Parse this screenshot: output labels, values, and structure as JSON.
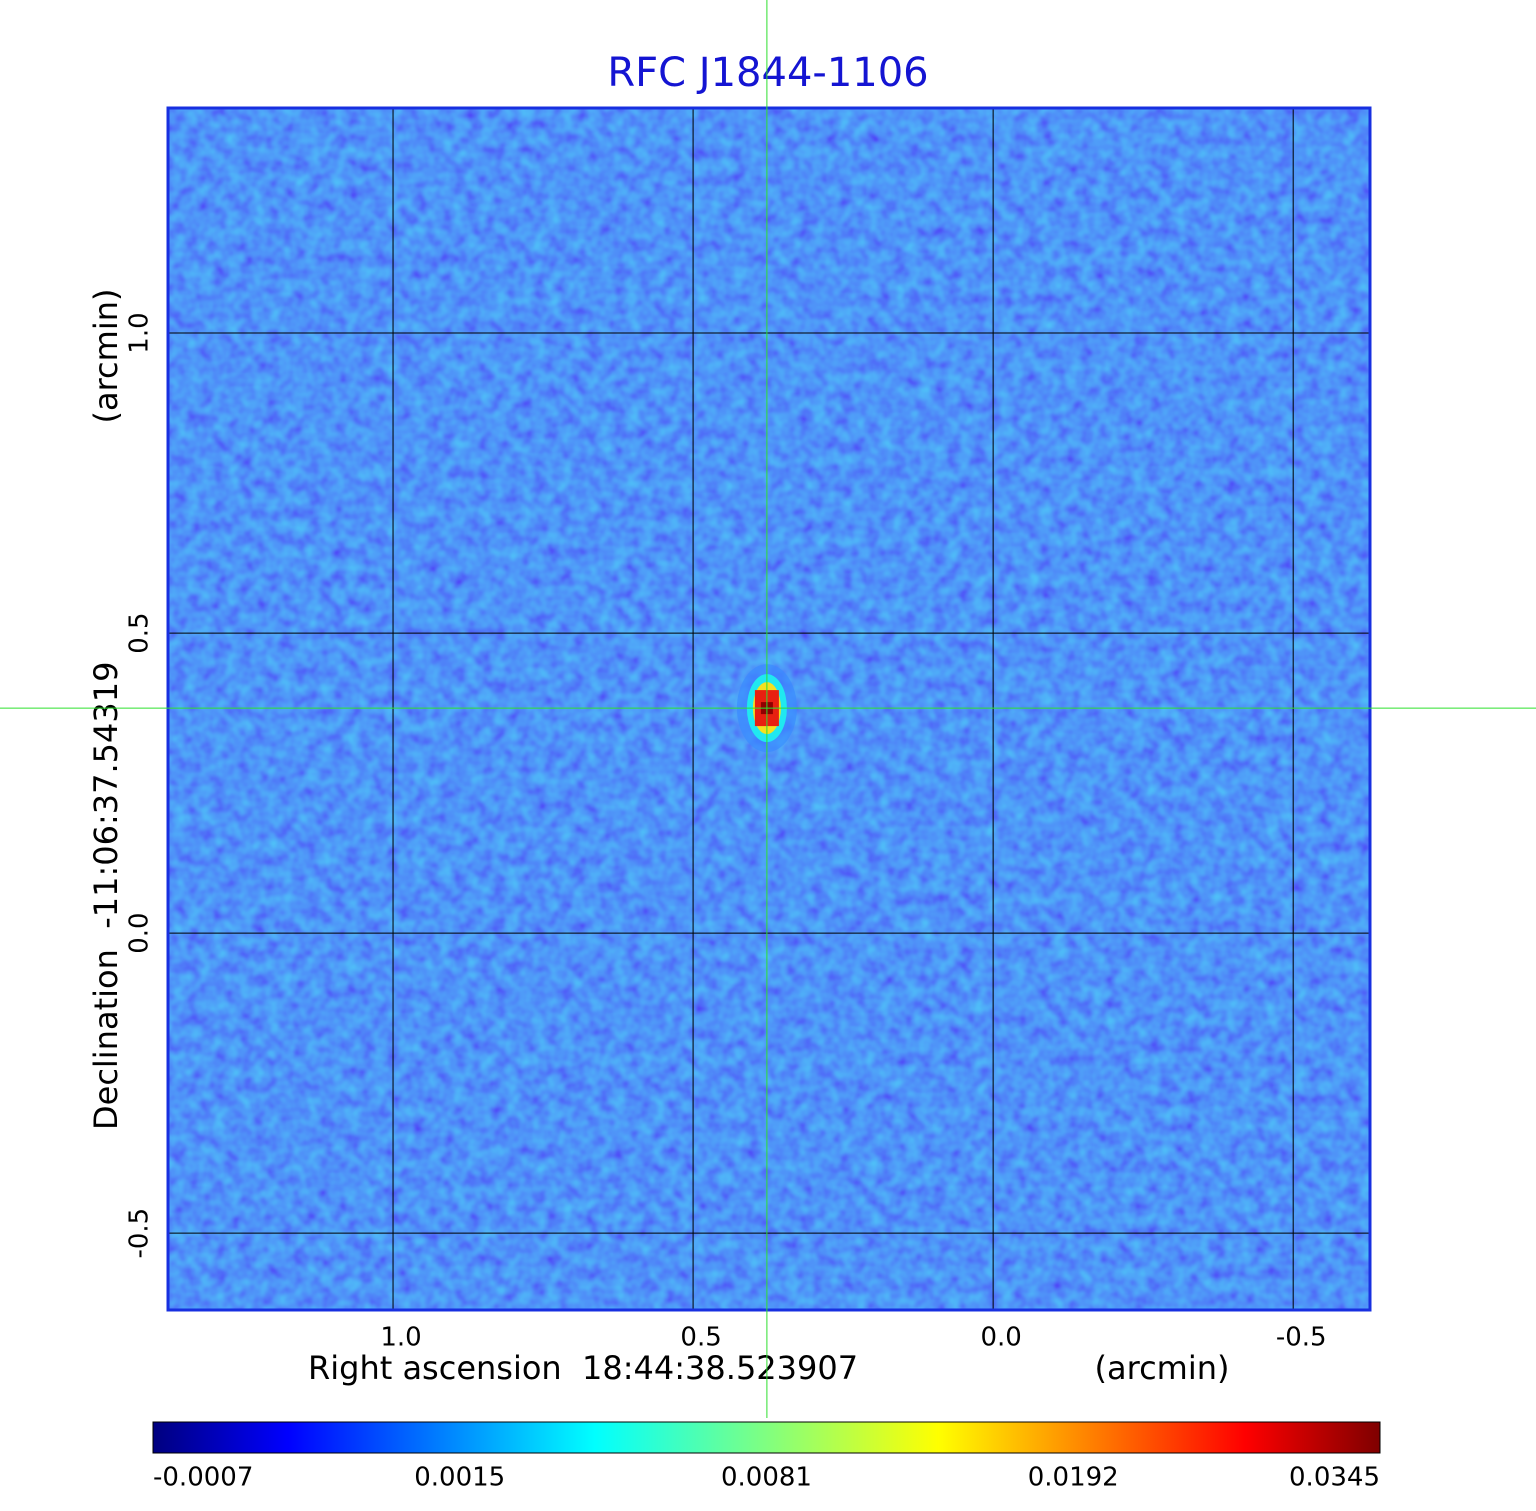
{
  "chart_data": {
    "type": "image",
    "title": "RFC J1844-1106",
    "x_label": "Right ascension  18:44:38.523907",
    "x_unit": "(arcmin)",
    "y_label": "Declination  -11:06:37.54319",
    "y_unit": "(arcmin)",
    "xlim": [
      1.375,
      -0.628
    ],
    "ylim": [
      -0.628,
      1.375
    ],
    "xticks": [
      {
        "value": 1,
        "label": "1.0"
      },
      0.5,
      {
        "value": 0,
        "label": "0.0"
      },
      -0.5
    ],
    "yticks": [
      {
        "value": 1,
        "label": "1.0"
      },
      0.5,
      {
        "value": 0,
        "label": "0.0"
      },
      -0.5
    ],
    "grid": true,
    "source": {
      "x": 0.377,
      "y": 0.375
    },
    "colorbar": {
      "colormap": "jet",
      "ticks": [
        -0.0007,
        0.0015,
        0.0081,
        0.0192,
        0.0345
      ]
    }
  }
}
